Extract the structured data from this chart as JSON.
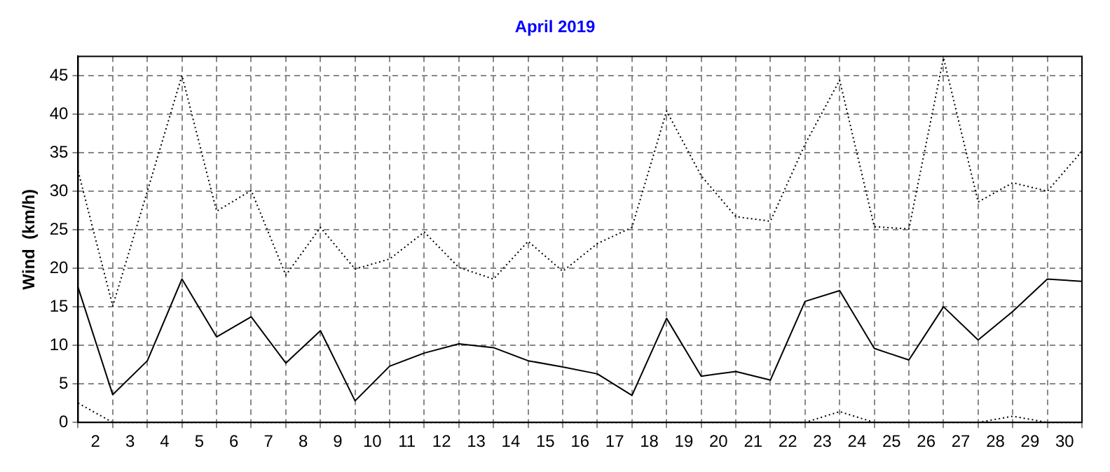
{
  "chart_data": {
    "type": "line",
    "title": "April 2019",
    "ylabel": "Wind  (km/h)",
    "x": [
      1.5,
      2.5,
      3.5,
      4.5,
      5.5,
      6.5,
      7.5,
      8.5,
      9.5,
      10.5,
      11.5,
      12.5,
      13.5,
      14.5,
      15.5,
      16.5,
      17.5,
      18.5,
      19.5,
      20.5,
      21.5,
      22.5,
      23.5,
      24.5,
      25.5,
      26.5,
      27.5,
      28.5,
      29.5,
      30.5
    ],
    "series": [
      {
        "color": "#000000",
        "line_style": "dotted",
        "values": [
          32.6,
          15.1,
          30,
          45,
          27.4,
          30.1,
          19.1,
          25.3,
          19.9,
          21.2,
          24.7,
          20.1,
          18.6,
          23.5,
          19.6,
          23.2,
          25.3,
          40.4,
          32,
          26.7,
          26.1,
          36.1,
          44.4,
          25.4,
          25.1,
          47.3,
          28.6,
          31.1,
          30,
          35.2
        ]
      },
      {
        "color": "#000000",
        "line_style": "solid",
        "values": [
          17.5,
          3.6,
          8,
          18.6,
          11.1,
          13.7,
          7.7,
          11.9,
          2.8,
          7.3,
          9,
          10.2,
          9.7,
          8,
          7.2,
          6.3,
          3.5,
          13.5,
          6,
          6.6,
          5.5,
          15.7,
          17.1,
          9.6,
          8.1,
          15,
          10.7,
          14.4,
          18.6,
          18.3
        ]
      },
      {
        "color": "#000000",
        "line_style": "dotted",
        "values": [
          2.5,
          0,
          0,
          0,
          0,
          0,
          0,
          0,
          0,
          0,
          0,
          0,
          0,
          0,
          0,
          0,
          0,
          0,
          0,
          0,
          0,
          0,
          1.4,
          0,
          0,
          0,
          0,
          0.8,
          0,
          0
        ]
      }
    ],
    "xlim": [
      1.5,
      30.5
    ],
    "xticks": [
      {
        "value": 1.5,
        "label": null
      },
      2,
      {
        "value": 2.5,
        "label": null
      },
      3,
      {
        "value": 3.5,
        "label": null
      },
      4,
      {
        "value": 4.5,
        "label": null
      },
      5,
      {
        "value": 5.5,
        "label": null
      },
      6,
      {
        "value": 6.5,
        "label": null
      },
      7,
      {
        "value": 7.5,
        "label": null
      },
      8,
      {
        "value": 8.5,
        "label": null
      },
      9,
      {
        "value": 9.5,
        "label": null
      },
      10,
      {
        "value": 10.5,
        "label": null
      },
      11,
      {
        "value": 11.5,
        "label": null
      },
      12,
      {
        "value": 12.5,
        "label": null
      },
      13,
      {
        "value": 13.5,
        "label": null
      },
      14,
      {
        "value": 14.5,
        "label": null
      },
      15,
      {
        "value": 15.5,
        "label": null
      },
      16,
      {
        "value": 16.5,
        "label": null
      },
      17,
      {
        "value": 17.5,
        "label": null
      },
      18,
      {
        "value": 18.5,
        "label": null
      },
      19,
      {
        "value": 19.5,
        "label": null
      },
      20,
      {
        "value": 20.5,
        "label": null
      },
      21,
      {
        "value": 21.5,
        "label": null
      },
      22,
      {
        "value": 22.5,
        "label": null
      },
      23,
      {
        "value": 23.5,
        "label": null
      },
      24,
      {
        "value": 24.5,
        "label": null
      },
      25,
      {
        "value": 25.5,
        "label": null
      },
      26,
      {
        "value": 26.5,
        "label": null
      },
      27,
      {
        "value": 27.5,
        "label": null
      },
      28,
      {
        "value": 28.5,
        "label": null
      },
      29,
      {
        "value": 29.5,
        "label": null
      },
      30,
      {
        "value": 30.5,
        "label": null
      }
    ],
    "ylim": [
      0,
      47.5
    ],
    "yticks": [
      0,
      5,
      10,
      15,
      20,
      25,
      30,
      35,
      40,
      45
    ],
    "grid": true,
    "legend": false,
    "marker": "none"
  }
}
